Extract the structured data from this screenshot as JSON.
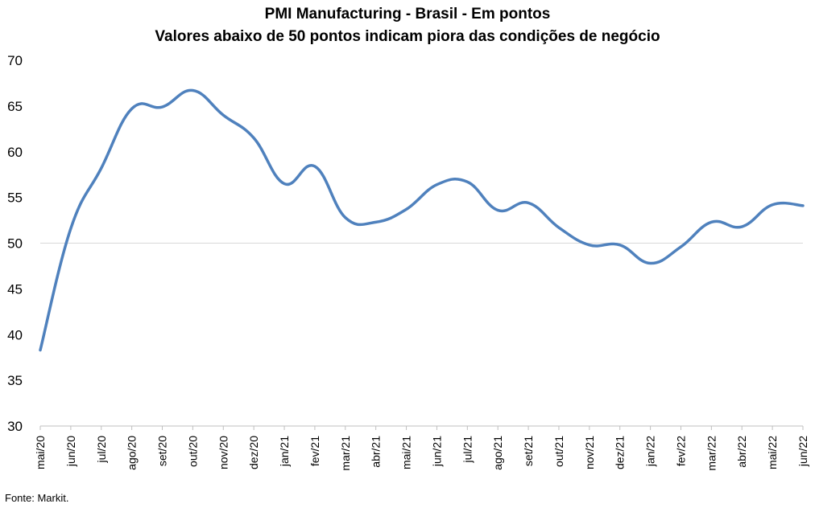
{
  "chart_data": {
    "type": "line",
    "title": "PMI Manufacturing - Brasil - Em pontos",
    "subtitle": "Valores abaixo de 50 pontos indicam piora das condições de negócio",
    "categories": [
      "mai/20",
      "jun/20",
      "jul/20",
      "ago/20",
      "set/20",
      "out/20",
      "nov/20",
      "dez/20",
      "jan/21",
      "fev/21",
      "mar/21",
      "abr/21",
      "mai/21",
      "jun/21",
      "jul/21",
      "ago/21",
      "set/21",
      "out/21",
      "nov/21",
      "dez/21",
      "jan/22",
      "fev/22",
      "mar/22",
      "abr/22",
      "mai/22",
      "jun/22"
    ],
    "values": [
      38.3,
      51.6,
      58.2,
      64.7,
      64.9,
      66.7,
      64.0,
      61.5,
      56.5,
      58.4,
      52.8,
      52.3,
      53.7,
      56.4,
      56.7,
      53.6,
      54.4,
      51.7,
      49.8,
      49.8,
      47.8,
      49.6,
      52.3,
      51.8,
      54.2,
      54.1
    ],
    "ylim": [
      30,
      70
    ],
    "yticks": [
      30,
      35,
      40,
      45,
      50,
      55,
      60,
      65,
      70
    ],
    "reference_line": 50,
    "grid": false,
    "line_color": "#4f81bd",
    "reference_color": "#d9d9d9",
    "source": "Fonte: Markit."
  }
}
